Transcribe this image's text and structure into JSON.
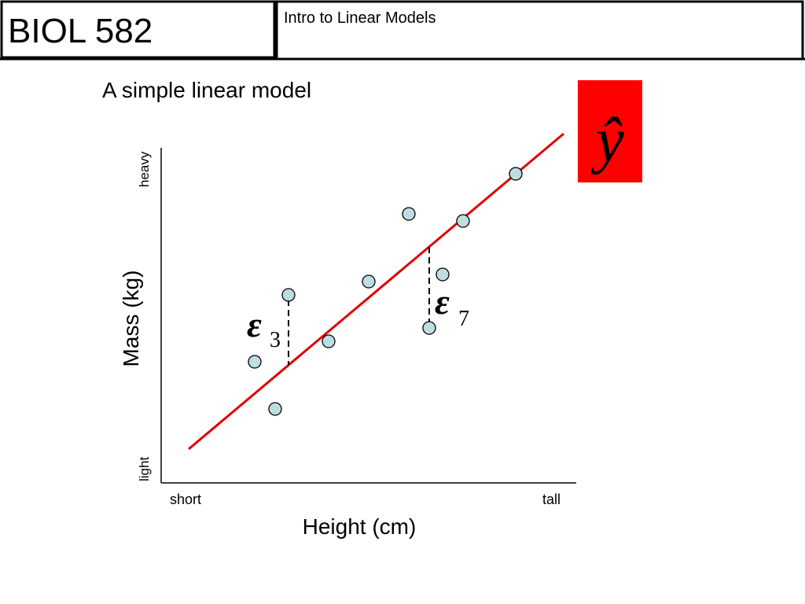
{
  "header": {
    "course": "BIOL 582",
    "title": "Intro to Linear Models"
  },
  "slide": {
    "heading": "A simple linear model",
    "badge": "ŷ"
  },
  "y_axis": {
    "label": "Mass (kg)",
    "high": "heavy",
    "low": "light"
  },
  "x_axis": {
    "label": "Height (cm)",
    "low": "short",
    "high": "tall"
  },
  "residuals": [
    {
      "symbol": "ε",
      "subscript": "3"
    },
    {
      "symbol": "ε",
      "subscript": "7"
    }
  ]
}
